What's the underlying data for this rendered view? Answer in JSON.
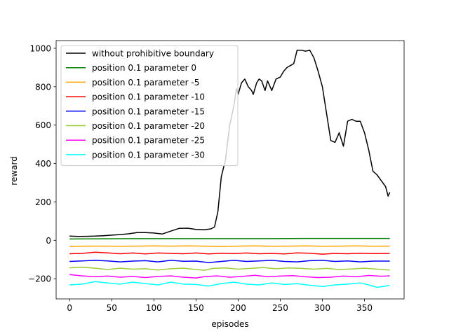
{
  "chart_data": {
    "type": "line",
    "xlabel": "episodes",
    "ylabel": "reward",
    "xlim": [
      -16,
      397
    ],
    "ylim": [
      -305,
      1040
    ],
    "xticks": [
      0,
      50,
      100,
      150,
      200,
      250,
      300,
      350
    ],
    "yticks": [
      -200,
      0,
      200,
      400,
      600,
      800,
      1000
    ],
    "ytick_labels": [
      "−200",
      "0",
      "200",
      "400",
      "600",
      "800",
      "1000"
    ],
    "grid": false,
    "legend_position": "top-left",
    "series": [
      {
        "name": "without prohibitive boundary",
        "color": "#000000",
        "points": [
          [
            0,
            22
          ],
          [
            10,
            20
          ],
          [
            20,
            21
          ],
          [
            30,
            22
          ],
          [
            40,
            24
          ],
          [
            50,
            27
          ],
          [
            60,
            30
          ],
          [
            70,
            34
          ],
          [
            80,
            40
          ],
          [
            90,
            40
          ],
          [
            100,
            38
          ],
          [
            110,
            33
          ],
          [
            120,
            48
          ],
          [
            130,
            62
          ],
          [
            140,
            63
          ],
          [
            150,
            57
          ],
          [
            160,
            55
          ],
          [
            168,
            60
          ],
          [
            172,
            70
          ],
          [
            176,
            150
          ],
          [
            180,
            330
          ],
          [
            185,
            420
          ],
          [
            190,
            600
          ],
          [
            195,
            700
          ],
          [
            198,
            790
          ],
          [
            200,
            760
          ],
          [
            204,
            820
          ],
          [
            208,
            840
          ],
          [
            212,
            800
          ],
          [
            216,
            780
          ],
          [
            218,
            760
          ],
          [
            222,
            820
          ],
          [
            225,
            840
          ],
          [
            228,
            830
          ],
          [
            232,
            780
          ],
          [
            235,
            830
          ],
          [
            240,
            780
          ],
          [
            245,
            840
          ],
          [
            250,
            850
          ],
          [
            254,
            880
          ],
          [
            258,
            900
          ],
          [
            262,
            910
          ],
          [
            266,
            920
          ],
          [
            270,
            990
          ],
          [
            275,
            990
          ],
          [
            280,
            985
          ],
          [
            285,
            990
          ],
          [
            290,
            950
          ],
          [
            295,
            880
          ],
          [
            300,
            800
          ],
          [
            305,
            660
          ],
          [
            310,
            520
          ],
          [
            315,
            510
          ],
          [
            320,
            560
          ],
          [
            325,
            490
          ],
          [
            330,
            620
          ],
          [
            335,
            630
          ],
          [
            340,
            620
          ],
          [
            345,
            620
          ],
          [
            350,
            560
          ],
          [
            355,
            470
          ],
          [
            360,
            360
          ],
          [
            365,
            340
          ],
          [
            370,
            310
          ],
          [
            375,
            280
          ],
          [
            378,
            230
          ],
          [
            380,
            250
          ]
        ]
      },
      {
        "name": "position 0.1 parameter 0",
        "color": "#008000",
        "points": [
          [
            0,
            7
          ],
          [
            40,
            8
          ],
          [
            80,
            9
          ],
          [
            120,
            9
          ],
          [
            160,
            9
          ],
          [
            200,
            9
          ],
          [
            240,
            9
          ],
          [
            280,
            10
          ],
          [
            320,
            10
          ],
          [
            360,
            10
          ],
          [
            380,
            10
          ]
        ]
      },
      {
        "name": "position 0.1 parameter -5",
        "color": "#ffa500",
        "points": [
          [
            0,
            -32
          ],
          [
            20,
            -30
          ],
          [
            40,
            -30
          ],
          [
            60,
            -31
          ],
          [
            80,
            -30
          ],
          [
            100,
            -29
          ],
          [
            120,
            -30
          ],
          [
            140,
            -29
          ],
          [
            160,
            -30
          ],
          [
            180,
            -32
          ],
          [
            200,
            -30
          ],
          [
            220,
            -29
          ],
          [
            240,
            -31
          ],
          [
            260,
            -30
          ],
          [
            280,
            -29
          ],
          [
            300,
            -31
          ],
          [
            320,
            -30
          ],
          [
            340,
            -29
          ],
          [
            360,
            -31
          ],
          [
            380,
            -30
          ]
        ]
      },
      {
        "name": "position 0.1 parameter -10",
        "color": "#ff0000",
        "points": [
          [
            0,
            -70
          ],
          [
            15,
            -68
          ],
          [
            30,
            -62
          ],
          [
            45,
            -65
          ],
          [
            60,
            -70
          ],
          [
            75,
            -66
          ],
          [
            90,
            -71
          ],
          [
            105,
            -66
          ],
          [
            120,
            -68
          ],
          [
            135,
            -70
          ],
          [
            150,
            -66
          ],
          [
            165,
            -71
          ],
          [
            180,
            -67
          ],
          [
            195,
            -69
          ],
          [
            210,
            -66
          ],
          [
            225,
            -70
          ],
          [
            240,
            -68
          ],
          [
            255,
            -71
          ],
          [
            270,
            -65
          ],
          [
            285,
            -67
          ],
          [
            300,
            -72
          ],
          [
            315,
            -68
          ],
          [
            330,
            -70
          ],
          [
            345,
            -67
          ],
          [
            360,
            -69
          ],
          [
            380,
            -68
          ]
        ]
      },
      {
        "name": "position 0.1 parameter -15",
        "color": "#0000ff",
        "points": [
          [
            0,
            -110
          ],
          [
            15,
            -107
          ],
          [
            30,
            -104
          ],
          [
            45,
            -107
          ],
          [
            60,
            -112
          ],
          [
            75,
            -108
          ],
          [
            90,
            -106
          ],
          [
            105,
            -112
          ],
          [
            120,
            -104
          ],
          [
            135,
            -109
          ],
          [
            150,
            -108
          ],
          [
            165,
            -116
          ],
          [
            180,
            -110
          ],
          [
            195,
            -104
          ],
          [
            210,
            -110
          ],
          [
            225,
            -107
          ],
          [
            240,
            -104
          ],
          [
            255,
            -110
          ],
          [
            270,
            -112
          ],
          [
            285,
            -106
          ],
          [
            300,
            -104
          ],
          [
            315,
            -110
          ],
          [
            330,
            -107
          ],
          [
            345,
            -112
          ],
          [
            360,
            -108
          ],
          [
            380,
            -108
          ]
        ]
      },
      {
        "name": "position 0.1 parameter -20",
        "color": "#9acd32",
        "points": [
          [
            0,
            -143
          ],
          [
            15,
            -140
          ],
          [
            30,
            -145
          ],
          [
            45,
            -152
          ],
          [
            60,
            -145
          ],
          [
            75,
            -150
          ],
          [
            90,
            -148
          ],
          [
            105,
            -155
          ],
          [
            120,
            -148
          ],
          [
            135,
            -145
          ],
          [
            150,
            -152
          ],
          [
            160,
            -156
          ],
          [
            170,
            -146
          ],
          [
            185,
            -144
          ],
          [
            200,
            -150
          ],
          [
            215,
            -146
          ],
          [
            230,
            -142
          ],
          [
            245,
            -148
          ],
          [
            260,
            -144
          ],
          [
            275,
            -146
          ],
          [
            290,
            -150
          ],
          [
            305,
            -146
          ],
          [
            320,
            -152
          ],
          [
            335,
            -149
          ],
          [
            350,
            -145
          ],
          [
            365,
            -150
          ],
          [
            380,
            -155
          ]
        ]
      },
      {
        "name": "position 0.1 parameter -25",
        "color": "#ff00ff",
        "points": [
          [
            0,
            -178
          ],
          [
            15,
            -185
          ],
          [
            30,
            -190
          ],
          [
            45,
            -186
          ],
          [
            60,
            -192
          ],
          [
            75,
            -188
          ],
          [
            90,
            -194
          ],
          [
            105,
            -188
          ],
          [
            120,
            -185
          ],
          [
            135,
            -192
          ],
          [
            150,
            -196
          ],
          [
            160,
            -189
          ],
          [
            175,
            -185
          ],
          [
            190,
            -192
          ],
          [
            205,
            -188
          ],
          [
            220,
            -182
          ],
          [
            235,
            -190
          ],
          [
            250,
            -186
          ],
          [
            265,
            -184
          ],
          [
            280,
            -190
          ],
          [
            295,
            -194
          ],
          [
            310,
            -192
          ],
          [
            325,
            -186
          ],
          [
            340,
            -190
          ],
          [
            355,
            -183
          ],
          [
            370,
            -187
          ],
          [
            380,
            -185
          ]
        ]
      },
      {
        "name": "position 0.1 parameter -30",
        "color": "#00ffff",
        "points": [
          [
            0,
            -232
          ],
          [
            15,
            -228
          ],
          [
            30,
            -215
          ],
          [
            45,
            -222
          ],
          [
            60,
            -228
          ],
          [
            75,
            -218
          ],
          [
            90,
            -225
          ],
          [
            105,
            -232
          ],
          [
            120,
            -218
          ],
          [
            135,
            -228
          ],
          [
            150,
            -230
          ],
          [
            165,
            -238
          ],
          [
            180,
            -225
          ],
          [
            195,
            -218
          ],
          [
            210,
            -228
          ],
          [
            225,
            -232
          ],
          [
            240,
            -222
          ],
          [
            255,
            -230
          ],
          [
            270,
            -226
          ],
          [
            285,
            -234
          ],
          [
            300,
            -240
          ],
          [
            315,
            -232
          ],
          [
            330,
            -228
          ],
          [
            345,
            -222
          ],
          [
            355,
            -232
          ],
          [
            365,
            -245
          ],
          [
            380,
            -235
          ]
        ]
      }
    ]
  }
}
